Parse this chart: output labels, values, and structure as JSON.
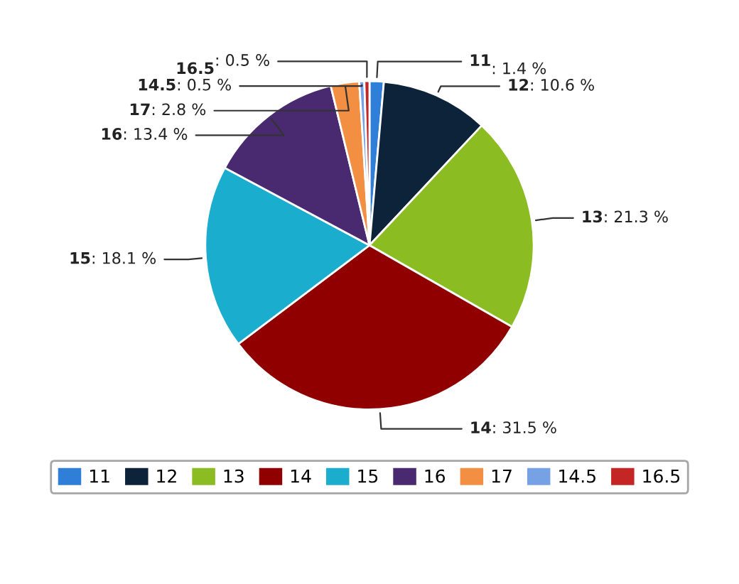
{
  "chart_data": {
    "type": "pie",
    "categories": [
      "11",
      "12",
      "13",
      "14",
      "15",
      "16",
      "17",
      "14.5",
      "16.5"
    ],
    "values": [
      1.4,
      10.6,
      21.3,
      31.5,
      18.1,
      13.4,
      2.8,
      0.5,
      0.5
    ],
    "colors": [
      "#2f7ed8",
      "#0d233a",
      "#8bbc21",
      "#910000",
      "#1aadce",
      "#492970",
      "#f28f43",
      "#77a1e5",
      "#c42525"
    ],
    "value_labels": [
      ": 1.4 %",
      ": 10.6 %",
      ": 21.3 %",
      ": 31.5 %",
      ": 18.1 %",
      ": 13.4 %",
      ": 2.8 %",
      ": 0.5 %",
      ": 0.5 %"
    ],
    "data_labels": true,
    "legend": "bottom"
  }
}
